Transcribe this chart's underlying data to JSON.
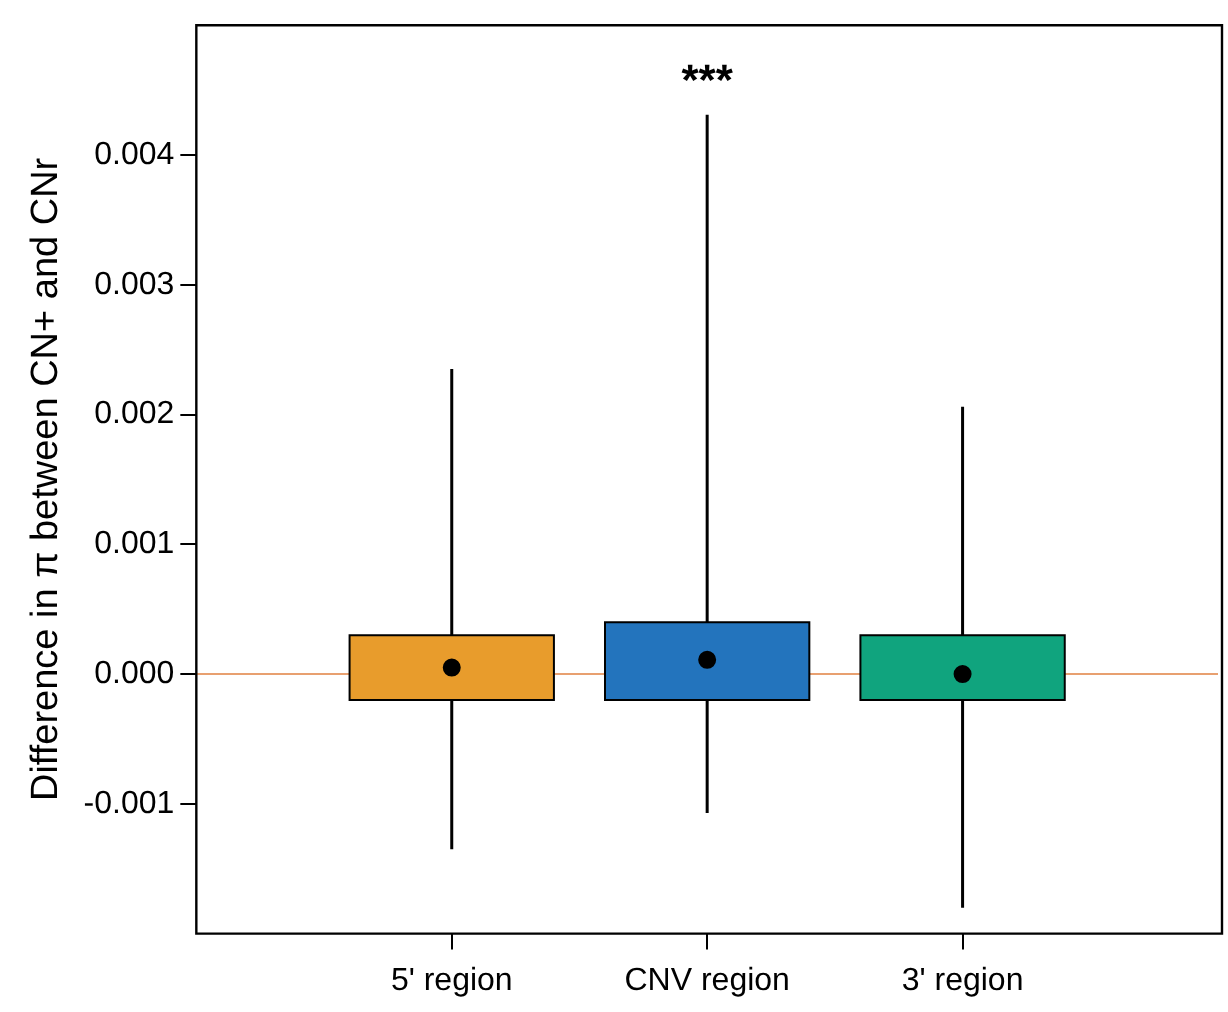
{
  "chart_data": {
    "type": "box",
    "ylabel": "Difference in π between CN+ and CNr",
    "categories": [
      "5' region",
      "CNV region",
      "3' region"
    ],
    "colors": [
      "#e89c2c",
      "#2374bd",
      "#10a47e"
    ],
    "boxes": [
      {
        "low": -0.00135,
        "q1": -0.0002,
        "median": 5e-05,
        "q3": 0.0003,
        "high": 0.00235
      },
      {
        "low": -0.00107,
        "q1": -0.0002,
        "median": 0.00011,
        "q3": 0.0004,
        "high": 0.00431
      },
      {
        "low": -0.0018,
        "q1": -0.0002,
        "median": 0.0,
        "q3": 0.0003,
        "high": 0.00206
      }
    ],
    "ylim": [
      -0.002,
      0.005
    ],
    "yticks": [
      {
        "value": -0.001,
        "label": "-0.001"
      },
      {
        "value": 0,
        "label": "0.000"
      },
      {
        "value": 0.001,
        "label": "0.001"
      },
      {
        "value": 0.002,
        "label": "0.002"
      },
      {
        "value": 0.003,
        "label": "0.003"
      },
      {
        "value": 0.004,
        "label": "0.004"
      }
    ],
    "ref_lines": [
      {
        "axis": "y",
        "value": 0,
        "color": "#e8a070"
      }
    ],
    "annotations": [
      "***"
    ],
    "grid": false,
    "legend": false
  }
}
